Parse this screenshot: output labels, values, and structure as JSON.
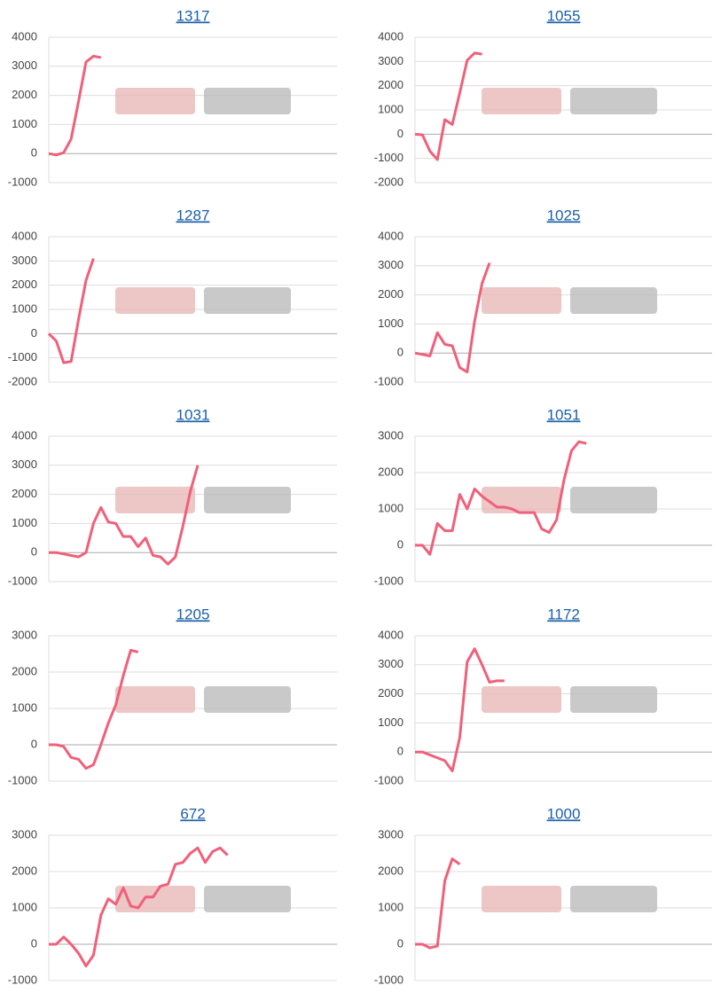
{
  "chart_data": [
    {
      "type": "line",
      "title": "1317",
      "color": "#f0607a",
      "grid": true,
      "ylim": [
        -1000,
        4000
      ],
      "yticks": [
        -1000,
        0,
        1000,
        2000,
        3000,
        4000
      ],
      "values": [
        0,
        -50,
        30,
        500,
        1800,
        3150,
        3350,
        3300
      ]
    },
    {
      "type": "line",
      "title": "1055",
      "color": "#f0607a",
      "grid": true,
      "ylim": [
        -2000,
        4000
      ],
      "yticks": [
        -2000,
        -1000,
        0,
        1000,
        2000,
        3000,
        4000
      ],
      "values": [
        0,
        -30,
        -700,
        -1050,
        600,
        400,
        1700,
        3050,
        3350,
        3300
      ]
    },
    {
      "type": "line",
      "title": "1287",
      "color": "#f0607a",
      "grid": true,
      "ylim": [
        -2000,
        4000
      ],
      "yticks": [
        -2000,
        -1000,
        0,
        1000,
        2000,
        3000,
        4000
      ],
      "values": [
        0,
        -300,
        -1200,
        -1150,
        600,
        2200,
        3100
      ]
    },
    {
      "type": "line",
      "title": "1025",
      "color": "#f0607a",
      "grid": true,
      "ylim": [
        -1000,
        4000
      ],
      "yticks": [
        -1000,
        0,
        1000,
        2000,
        3000,
        4000
      ],
      "values": [
        0,
        -50,
        -100,
        700,
        300,
        250,
        -500,
        -650,
        1100,
        2400,
        3100
      ]
    },
    {
      "type": "line",
      "title": "1031",
      "color": "#f0607a",
      "grid": true,
      "ylim": [
        -1000,
        4000
      ],
      "yticks": [
        -1000,
        0,
        1000,
        2000,
        3000,
        4000
      ],
      "values": [
        0,
        0,
        -50,
        -100,
        -150,
        0,
        1000,
        1550,
        1050,
        1000,
        550,
        550,
        200,
        500,
        -100,
        -150,
        -400,
        -150,
        900,
        2100,
        3000
      ]
    },
    {
      "type": "line",
      "title": "1051",
      "color": "#f0607a",
      "grid": true,
      "ylim": [
        -1000,
        3000
      ],
      "yticks": [
        -1000,
        0,
        1000,
        2000,
        3000
      ],
      "values": [
        0,
        0,
        -250,
        600,
        400,
        400,
        1400,
        1000,
        1550,
        1350,
        1200,
        1050,
        1050,
        1000,
        900,
        900,
        900,
        450,
        350,
        700,
        1800,
        2600,
        2850,
        2800
      ]
    },
    {
      "type": "line",
      "title": "1205",
      "color": "#f0607a",
      "grid": true,
      "ylim": [
        -1000,
        3000
      ],
      "yticks": [
        -1000,
        0,
        1000,
        2000,
        3000
      ],
      "values": [
        0,
        0,
        -50,
        -350,
        -400,
        -650,
        -550,
        0,
        600,
        1100,
        1900,
        2600,
        2550
      ]
    },
    {
      "type": "line",
      "title": "1172",
      "color": "#f0607a",
      "grid": true,
      "ylim": [
        -1000,
        4000
      ],
      "yticks": [
        -1000,
        0,
        1000,
        2000,
        3000,
        4000
      ],
      "values": [
        0,
        0,
        -100,
        -200,
        -300,
        -650,
        500,
        3100,
        3550,
        3000,
        2400,
        2450,
        2450
      ]
    },
    {
      "type": "line",
      "title": "672",
      "color": "#f0607a",
      "grid": true,
      "ylim": [
        -1000,
        3000
      ],
      "yticks": [
        -1000,
        0,
        1000,
        2000,
        3000
      ],
      "values": [
        0,
        0,
        200,
        0,
        -250,
        -600,
        -300,
        800,
        1250,
        1100,
        1550,
        1050,
        1000,
        1300,
        1300,
        1600,
        1650,
        2200,
        2250,
        2500,
        2650,
        2250,
        2550,
        2650,
        2450
      ]
    },
    {
      "type": "line",
      "title": "1000",
      "color": "#f0607a",
      "grid": true,
      "ylim": [
        -1000,
        3000
      ],
      "yticks": [
        -1000,
        0,
        1000,
        2000,
        3000
      ],
      "values": [
        0,
        0,
        -100,
        -50,
        1750,
        2350,
        2200
      ]
    }
  ]
}
